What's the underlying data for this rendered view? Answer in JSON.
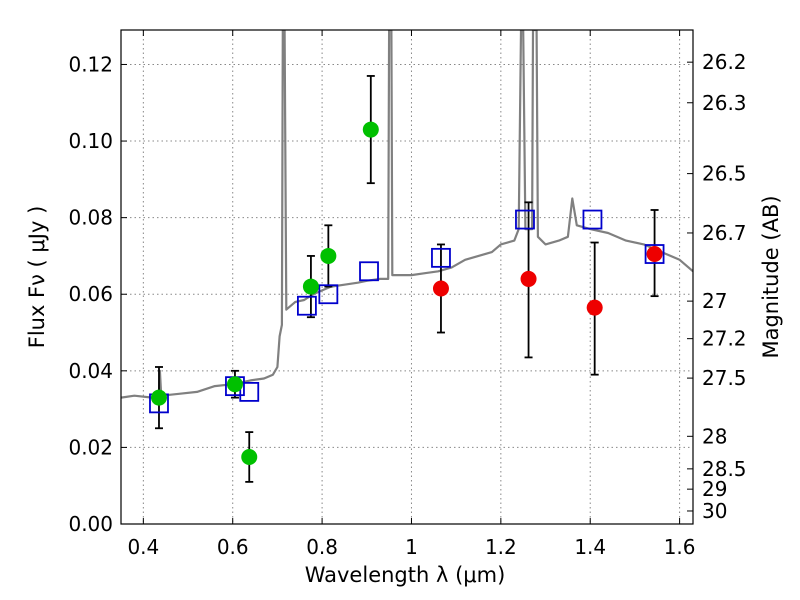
{
  "chart_data": {
    "type": "scatter",
    "xlabel": "Wavelength  λ (μm)",
    "ylabel": "Flux  Fν  ( μJy )",
    "y2label": "Magnitude (AB)",
    "xlim": [
      0.35,
      1.63
    ],
    "ylim": [
      0.0,
      0.129
    ],
    "grid": true,
    "x_ticks": [
      0.4,
      0.6,
      0.8,
      1.0,
      1.2,
      1.4,
      1.6
    ],
    "x_tick_labels": [
      "0.4",
      "0.6",
      "0.8",
      "1",
      "1.2",
      "1.4",
      "1.6"
    ],
    "y_ticks": [
      0.0,
      0.02,
      0.04,
      0.06,
      0.08,
      0.1,
      0.12
    ],
    "y_tick_labels": [
      "0.00",
      "0.02",
      "0.04",
      "0.06",
      "0.08",
      "0.10",
      "0.12"
    ],
    "y2_ticks": [
      {
        "flux": 0.1206,
        "label": "26.2"
      },
      {
        "flux": 0.11,
        "label": "26.3"
      },
      {
        "flux": 0.0915,
        "label": "26.5"
      },
      {
        "flux": 0.076,
        "label": "26.7"
      },
      {
        "flux": 0.0582,
        "label": "27"
      },
      {
        "flux": 0.0484,
        "label": "27.2"
      },
      {
        "flux": 0.0381,
        "label": "27.5"
      },
      {
        "flux": 0.0229,
        "label": "28"
      },
      {
        "flux": 0.0144,
        "label": "28.5"
      },
      {
        "flux": 0.0091,
        "label": "29"
      },
      {
        "flux": 0.0034,
        "label": "30"
      }
    ],
    "colors": {
      "spectrum": "#808080",
      "green_points": "#00c000",
      "red_points": "#ee0000",
      "model_boxes": "#0000cc",
      "grid": "#888888"
    },
    "series": [
      {
        "kind": "line",
        "values": [
          [
            0.35,
            0.033
          ],
          [
            0.38,
            0.0335
          ],
          [
            0.42,
            0.033
          ],
          [
            0.435,
            0.0335
          ],
          [
            0.437,
            0.04
          ],
          [
            0.44,
            0.0335
          ],
          [
            0.48,
            0.034
          ],
          [
            0.52,
            0.0345
          ],
          [
            0.56,
            0.036
          ],
          [
            0.6,
            0.0365
          ],
          [
            0.64,
            0.0375
          ],
          [
            0.67,
            0.038
          ],
          [
            0.69,
            0.039
          ],
          [
            0.7,
            0.041
          ],
          [
            0.705,
            0.049
          ],
          [
            0.71,
            0.052
          ],
          [
            0.712,
            0.129
          ],
          [
            0.716,
            0.129
          ],
          [
            0.72,
            0.056
          ],
          [
            0.74,
            0.058
          ],
          [
            0.76,
            0.0585
          ],
          [
            0.78,
            0.06
          ],
          [
            0.8,
            0.061
          ],
          [
            0.82,
            0.062
          ],
          [
            0.85,
            0.0625
          ],
          [
            0.88,
            0.063
          ],
          [
            0.9,
            0.0635
          ],
          [
            0.93,
            0.064
          ],
          [
            0.948,
            0.064
          ],
          [
            0.95,
            0.129
          ],
          [
            0.955,
            0.129
          ],
          [
            0.957,
            0.065
          ],
          [
            0.98,
            0.065
          ],
          [
            1.0,
            0.065
          ],
          [
            1.03,
            0.0655
          ],
          [
            1.06,
            0.066
          ],
          [
            1.09,
            0.067
          ],
          [
            1.12,
            0.069
          ],
          [
            1.15,
            0.07
          ],
          [
            1.18,
            0.071
          ],
          [
            1.2,
            0.073
          ],
          [
            1.23,
            0.074
          ],
          [
            1.24,
            0.077
          ],
          [
            1.245,
            0.129
          ],
          [
            1.25,
            0.129
          ],
          [
            1.255,
            0.077
          ],
          [
            1.27,
            0.077
          ],
          [
            1.272,
            0.129
          ],
          [
            1.28,
            0.129
          ],
          [
            1.283,
            0.075
          ],
          [
            1.3,
            0.073
          ],
          [
            1.33,
            0.074
          ],
          [
            1.35,
            0.075
          ],
          [
            1.36,
            0.085
          ],
          [
            1.37,
            0.078
          ],
          [
            1.4,
            0.077
          ],
          [
            1.44,
            0.076
          ],
          [
            1.48,
            0.074
          ],
          [
            1.52,
            0.073
          ],
          [
            1.56,
            0.071
          ],
          [
            1.6,
            0.069
          ],
          [
            1.63,
            0.066
          ]
        ]
      },
      {
        "kind": "points",
        "color": "green",
        "values": [
          {
            "x": 0.435,
            "y": 0.033,
            "yerr": [
              0.025,
              0.041
            ]
          },
          {
            "x": 0.605,
            "y": 0.0365,
            "yerr": [
              0.033,
              0.04
            ]
          },
          {
            "x": 0.637,
            "y": 0.0175,
            "yerr": [
              0.011,
              0.024
            ]
          },
          {
            "x": 0.775,
            "y": 0.062,
            "yerr": [
              0.054,
              0.07
            ]
          },
          {
            "x": 0.814,
            "y": 0.07,
            "yerr": [
              0.062,
              0.078
            ]
          },
          {
            "x": 0.909,
            "y": 0.103,
            "yerr": [
              0.089,
              0.117
            ]
          }
        ]
      },
      {
        "kind": "points",
        "color": "red",
        "values": [
          {
            "x": 1.066,
            "y": 0.0615,
            "yerr": [
              0.05,
              0.073
            ]
          },
          {
            "x": 1.262,
            "y": 0.064,
            "yerr": [
              0.0435,
              0.084
            ]
          },
          {
            "x": 1.41,
            "y": 0.0565,
            "yerr": [
              0.039,
              0.0735
            ]
          },
          {
            "x": 1.544,
            "y": 0.0705,
            "yerr": [
              0.0595,
              0.082
            ]
          }
        ]
      },
      {
        "kind": "boxes",
        "color": "blue",
        "values": [
          {
            "x": 0.435,
            "y": 0.0315
          },
          {
            "x": 0.605,
            "y": 0.036
          },
          {
            "x": 0.637,
            "y": 0.0345
          },
          {
            "x": 0.766,
            "y": 0.057
          },
          {
            "x": 0.814,
            "y": 0.06
          },
          {
            "x": 0.905,
            "y": 0.066
          },
          {
            "x": 1.066,
            "y": 0.0695
          },
          {
            "x": 1.254,
            "y": 0.0795
          },
          {
            "x": 1.405,
            "y": 0.0795
          },
          {
            "x": 1.544,
            "y": 0.0705
          }
        ]
      }
    ]
  }
}
